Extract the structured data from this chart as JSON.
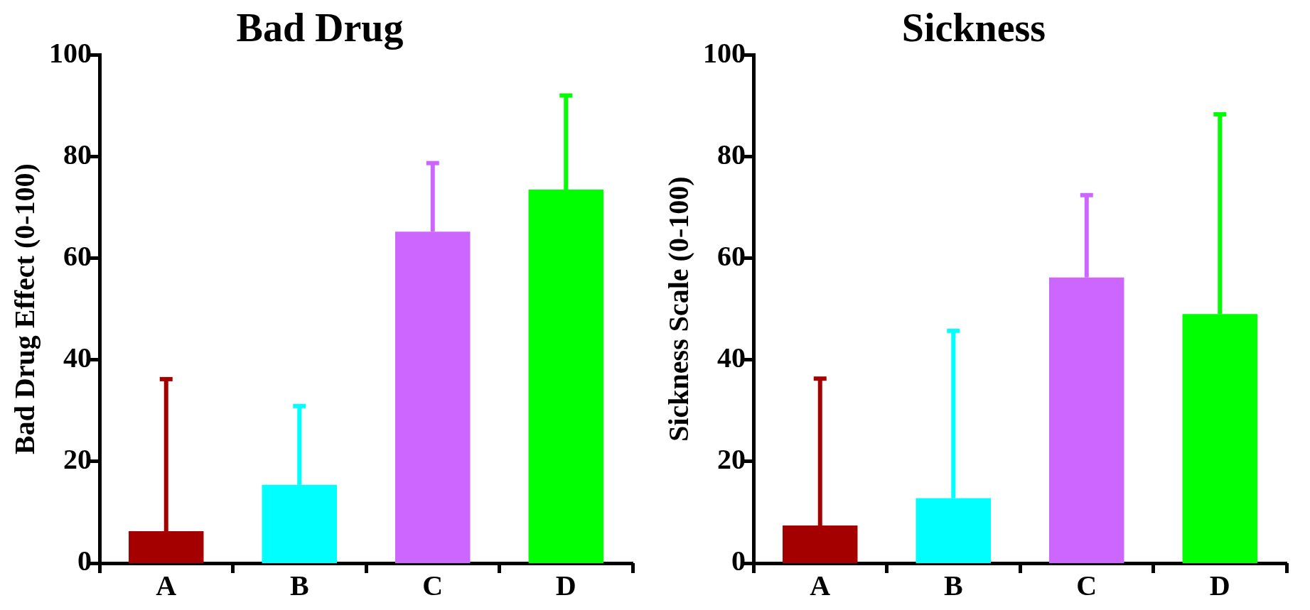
{
  "chart_data": [
    {
      "type": "bar",
      "title": "Bad Drug",
      "ylabel": "Bad Drug Effect (0-100)",
      "categories": [
        "A",
        "B",
        "C",
        "D"
      ],
      "values": [
        6.3,
        15.4,
        65.2,
        73.5
      ],
      "errors": [
        [
          6.3,
          36.2
        ],
        [
          15.4,
          30.9
        ],
        [
          65.2,
          78.7
        ],
        [
          73.5,
          92
        ]
      ],
      "colors": [
        "#a50000",
        "#00ffff",
        "#cc66ff",
        "#00ff00"
      ],
      "ylim": [
        0,
        100
      ],
      "yticks": [
        0,
        20,
        40,
        60,
        80,
        100
      ],
      "grid": false,
      "legend": false
    },
    {
      "type": "bar",
      "title": "Sickness",
      "ylabel": "Sickness Scale (0-100)",
      "categories": [
        "A",
        "B",
        "C",
        "D"
      ],
      "values": [
        7.4,
        12.8,
        56.2,
        49
      ],
      "errors": [
        [
          7.4,
          36.3
        ],
        [
          12.8,
          45.7
        ],
        [
          56.2,
          72.4
        ],
        [
          49,
          88.3
        ]
      ],
      "colors": [
        "#a50000",
        "#00ffff",
        "#cc66ff",
        "#00ff00"
      ],
      "ylim": [
        0,
        100
      ],
      "yticks": [
        0,
        20,
        40,
        60,
        80,
        100
      ],
      "grid": false,
      "legend": false
    }
  ]
}
